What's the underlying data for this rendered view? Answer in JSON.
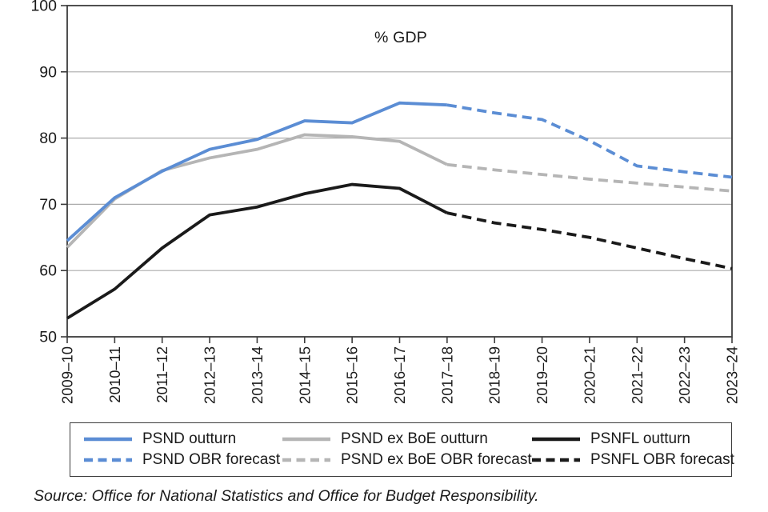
{
  "source_note": "Source: Office for National Statistics and Office for Budget Responsibility.",
  "colors": {
    "psnd_blue": "#5B8DD4",
    "psnd_ex_boe_grey": "#B5B5B5",
    "psnfl_black": "#1A1A1A",
    "gridline": "#ABABAB",
    "frame": "#3C3C3C",
    "text": "#1A1A1A"
  },
  "legend": {
    "columns": [
      [
        0,
        1
      ],
      [
        2,
        3
      ],
      [
        4,
        5
      ]
    ]
  },
  "chart_data": {
    "type": "line",
    "title": "% GDP",
    "xlabel": "",
    "ylabel": "% GDP",
    "categories": [
      "2009–10",
      "2010–11",
      "2011–12",
      "2012–13",
      "2013–14",
      "2014–15",
      "2015–16",
      "2016–17",
      "2017–18",
      "2018–19",
      "2019–20",
      "2020–21",
      "2021–22",
      "2022–23",
      "2023–24"
    ],
    "ylim": [
      50,
      100
    ],
    "yticks": [
      50,
      60,
      70,
      80,
      90,
      100
    ],
    "grid": "horizontal",
    "legend_position": "bottom",
    "series": [
      {
        "name": "PSND outturn",
        "style": "solid",
        "color": "#5B8DD4",
        "x_start_index": 0,
        "values": [
          64.5,
          71.0,
          75.0,
          78.3,
          79.8,
          82.6,
          82.3,
          85.3,
          85.0
        ]
      },
      {
        "name": "PSND OBR forecast",
        "style": "dashed",
        "color": "#5B8DD4",
        "x_start_index": 8,
        "values": [
          85.0,
          83.8,
          82.8,
          79.6,
          75.8,
          74.9,
          74.1
        ]
      },
      {
        "name": "PSND ex BoE outturn",
        "style": "solid",
        "color": "#B5B5B5",
        "x_start_index": 0,
        "values": [
          63.5,
          70.8,
          75.1,
          77.0,
          78.3,
          80.5,
          80.2,
          79.5,
          76.0
        ]
      },
      {
        "name": "PSND ex BoE OBR forecast",
        "style": "dashed",
        "color": "#B5B5B5",
        "x_start_index": 8,
        "values": [
          76.0,
          75.2,
          74.5,
          73.8,
          73.2,
          72.6,
          72.0
        ]
      },
      {
        "name": "PSNFL outturn",
        "style": "solid",
        "color": "#1A1A1A",
        "x_start_index": 0,
        "values": [
          52.8,
          57.2,
          63.4,
          68.4,
          69.6,
          71.6,
          73.0,
          72.4,
          68.7
        ]
      },
      {
        "name": "PSNFL OBR forecast",
        "style": "dashed",
        "color": "#1A1A1A",
        "x_start_index": 8,
        "values": [
          68.7,
          67.2,
          66.2,
          65.0,
          63.4,
          61.8,
          60.3
        ]
      }
    ]
  }
}
